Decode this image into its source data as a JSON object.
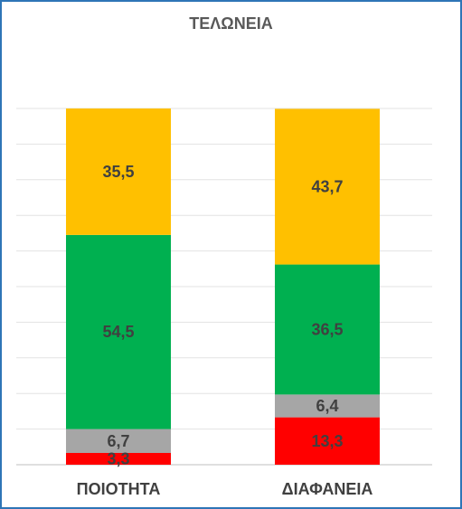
{
  "chart_data": {
    "type": "bar",
    "stacked": true,
    "title": "ΤΕΛΩΝΕΙΑ",
    "categories": [
      "ΠΟΙΟΤΗΤΑ",
      "ΔΙΑΦΑΝΕΙΑ"
    ],
    "series": [
      {
        "values": [
          3.3,
          13.3
        ],
        "labels": [
          "3,3",
          "13,3"
        ],
        "color": "#ff0000"
      },
      {
        "values": [
          6.7,
          6.4
        ],
        "labels": [
          "6,7",
          "6,4"
        ],
        "color": "#a6a6a6"
      },
      {
        "values": [
          54.5,
          36.5
        ],
        "labels": [
          "54,5",
          "36,5"
        ],
        "color": "#00b050"
      },
      {
        "values": [
          35.5,
          43.7
        ],
        "labels": [
          "35,5",
          "43,7"
        ],
        "color": "#ffc000"
      }
    ],
    "ylim": [
      0,
      100
    ],
    "grid": true,
    "legend": "none"
  }
}
